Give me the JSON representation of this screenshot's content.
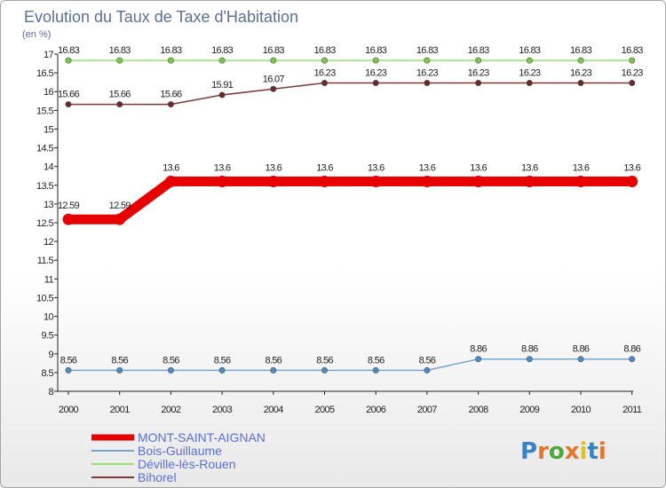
{
  "chart_data": {
    "type": "line",
    "title": "Evolution du Taux de Taxe d'Habitation",
    "subtitle": "(en %)",
    "x": [
      "2000",
      "2001",
      "2002",
      "2003",
      "2004",
      "2005",
      "2006",
      "2007",
      "2008",
      "2009",
      "2010",
      "2011"
    ],
    "ylim": [
      8,
      17
    ],
    "yticks": [
      8,
      8.5,
      9,
      9.5,
      10,
      10.5,
      11,
      11.5,
      12,
      12.5,
      13,
      13.5,
      14,
      14.5,
      15,
      15.5,
      16,
      16.5,
      17
    ],
    "ytick_labels": [
      "8",
      "8.5",
      "9",
      "9.5",
      "10",
      "10.5",
      "11",
      "11.5",
      "12",
      "12.5",
      "13",
      "13.5",
      "14",
      "14.5",
      "15",
      "15.5",
      "16",
      "16.5",
      "17"
    ],
    "grid": false,
    "legend_position": "bottom-left",
    "series": [
      {
        "name": "MONT-SAINT-AIGNAN",
        "color": "#e60000",
        "emphasis": true,
        "values": [
          12.59,
          12.59,
          13.6,
          13.6,
          13.6,
          13.6,
          13.6,
          13.6,
          13.6,
          13.6,
          13.6,
          13.6
        ],
        "labels": [
          "12.59",
          "12.59",
          "13.6",
          "13.6",
          "13.6",
          "13.6",
          "13.6",
          "13.6",
          "13.6",
          "13.6",
          "13.6",
          "13.6"
        ]
      },
      {
        "name": "Bois-Guillaume",
        "color": "#7aa6c9",
        "marker": "#4d8bc4",
        "values": [
          8.56,
          8.56,
          8.56,
          8.56,
          8.56,
          8.56,
          8.56,
          8.56,
          8.86,
          8.86,
          8.86,
          8.86
        ],
        "labels": [
          "8.56",
          "8.56",
          "8.56",
          "8.56",
          "8.56",
          "8.56",
          "8.56",
          "8.56",
          "8.86",
          "8.86",
          "8.86",
          "8.86"
        ]
      },
      {
        "name": "Déville-lès-Rouen",
        "color": "#9be070",
        "marker": "#7cc84a",
        "values": [
          16.83,
          16.83,
          16.83,
          16.83,
          16.83,
          16.83,
          16.83,
          16.83,
          16.83,
          16.83,
          16.83,
          16.83
        ],
        "labels": [
          "16.83",
          "16.83",
          "16.83",
          "16.83",
          "16.83",
          "16.83",
          "16.83",
          "16.83",
          "16.83",
          "16.83",
          "16.83",
          "16.83"
        ]
      },
      {
        "name": "Bihorel",
        "color": "#7a3a3a",
        "marker": "#6b2a2a",
        "values": [
          15.66,
          15.66,
          15.66,
          15.91,
          16.07,
          16.23,
          16.23,
          16.23,
          16.23,
          16.23,
          16.23,
          16.23
        ],
        "labels": [
          "15.66",
          "15.66",
          "15.66",
          "15.91",
          "16.07",
          "16.23",
          "16.23",
          "16.23",
          "16.23",
          "16.23",
          "16.23",
          "16.23"
        ]
      }
    ]
  },
  "logo": {
    "letters": [
      "P",
      "r",
      "o",
      "x",
      "i",
      "t",
      "i"
    ],
    "colors": [
      "#3b82c4",
      "#e8742a",
      "#4da83c",
      "#e8742a",
      "#e0c020",
      "#3b82c4",
      "#e8742a"
    ]
  }
}
